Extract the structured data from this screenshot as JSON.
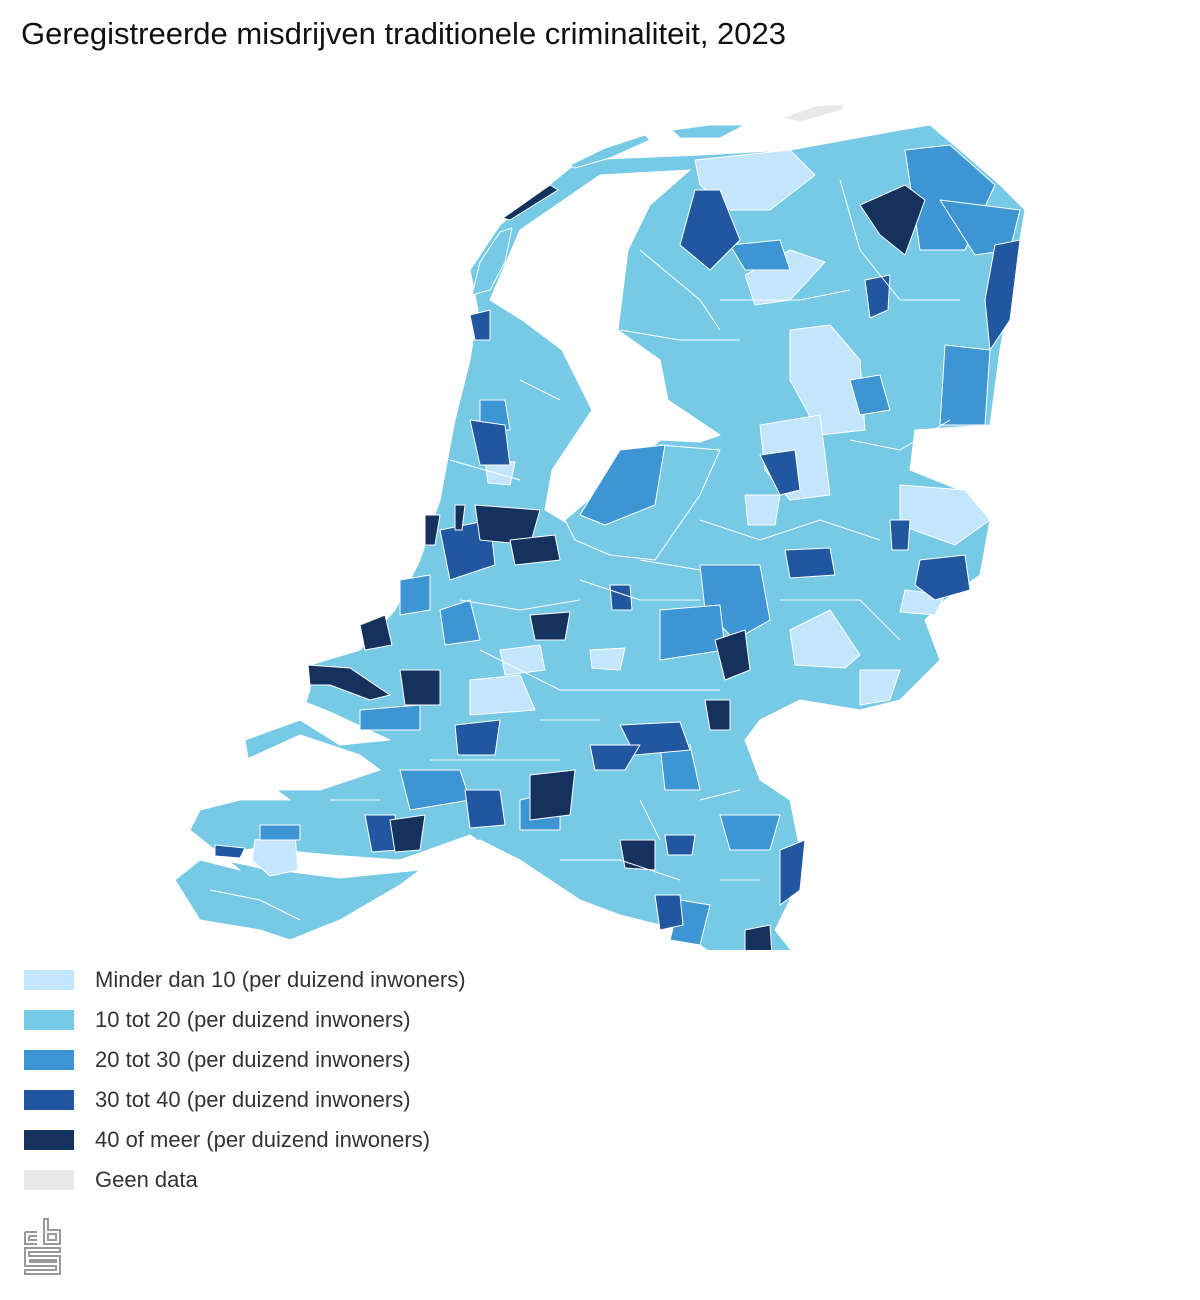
{
  "chart_data": {
    "type": "choropleth-map",
    "title": "Geregistreerde misdrijven traditionele criminaliteit, 2023",
    "region": "Nederland (gemeenten)",
    "legend_placement": "bottom-left",
    "legend": [
      {
        "label": "Minder dan 10 (per duizend inwoners)",
        "color": "#c3e6fc"
      },
      {
        "label": "10 tot 20 (per duizend inwoners)",
        "color": "#76cae5"
      },
      {
        "label": "20 tot 30 (per duizend inwoners)",
        "color": "#3d95d4"
      },
      {
        "label": "30 tot 40 (per duizend inwoners)",
        "color": "#2157a1"
      },
      {
        "label": "40 of meer (per duizend inwoners)",
        "color": "#15325f"
      },
      {
        "label": "Geen data",
        "color": "#e9e9e9"
      }
    ]
  },
  "logo": {
    "text": "cbs"
  }
}
